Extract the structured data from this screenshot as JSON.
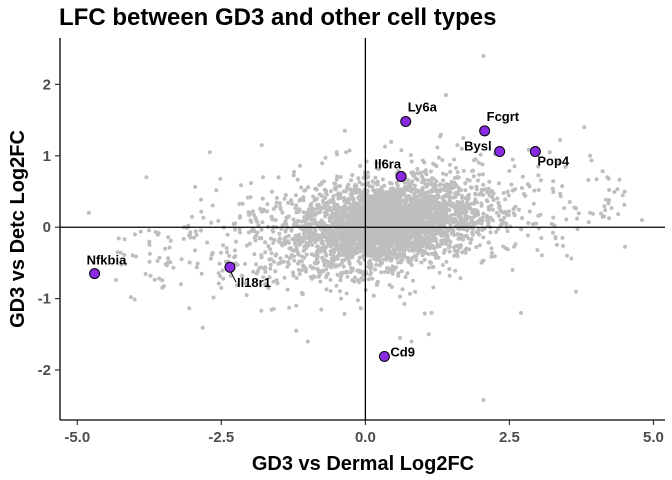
{
  "chart_data": {
    "type": "scatter",
    "title": "LFC between GD3 and other cell types",
    "xlabel": "GD3 vs Dermal Log2FC",
    "ylabel": "GD3 vs Detc Log2FC",
    "xlim": [
      -5.3,
      5.2
    ],
    "ylim": [
      -2.7,
      2.65
    ],
    "xticks": [
      -5,
      -2.5,
      0,
      2.5,
      5
    ],
    "xtick_labels": [
      "-5.0",
      "-2.5",
      "0.0",
      "2.5",
      "5.0"
    ],
    "yticks": [
      -2,
      -1,
      0,
      1,
      2
    ],
    "ytick_labels": [
      "-2",
      "-1",
      "0",
      "1",
      "2"
    ],
    "reference_lines": {
      "x": 0,
      "y": 0
    },
    "grid": false,
    "colors": {
      "background_points": "#bebebe",
      "highlight_fill": "#8a2be2",
      "highlight_stroke": "#000000",
      "axis": "#000000"
    },
    "background_cloud": {
      "description_points": "approx. several thousand genes",
      "outliers": [
        [
          2.05,
          2.4
        ],
        [
          1.4,
          1.85
        ],
        [
          -1.8,
          1.15
        ],
        [
          -2.7,
          1.05
        ],
        [
          -3.8,
          0.7
        ],
        [
          3.8,
          1.4
        ],
        [
          3.9,
          1.0
        ],
        [
          4.2,
          0.7
        ],
        [
          4.8,
          0.1
        ],
        [
          -4.8,
          0.2
        ],
        [
          -4.3,
          -0.35
        ],
        [
          -3.2,
          -0.8
        ],
        [
          -2.5,
          -0.85
        ],
        [
          -1.2,
          -1.45
        ],
        [
          -1.0,
          -1.6
        ],
        [
          -1.2,
          -1.1
        ],
        [
          0.6,
          -1.55
        ],
        [
          0.8,
          -1.6
        ],
        [
          1.15,
          -1.2
        ],
        [
          1.1,
          -1.5
        ],
        [
          2.05,
          -2.42
        ],
        [
          2.7,
          -1.2
        ],
        [
          3.5,
          -0.4
        ],
        [
          3.2,
          1.05
        ],
        [
          1.7,
          1.25
        ],
        [
          -0.5,
          1.05
        ],
        [
          3.0,
          0.85
        ],
        [
          4.5,
          0.5
        ],
        [
          -4.0,
          -0.1
        ],
        [
          3.9,
          0.2
        ]
      ]
    },
    "highlighted": [
      {
        "label": "Ly6a",
        "x": 0.7,
        "y": 1.48
      },
      {
        "label": "Fcgrt",
        "x": 2.07,
        "y": 1.35
      },
      {
        "label": "Bysl",
        "x": 2.33,
        "y": 1.06
      },
      {
        "label": "Pop4",
        "x": 2.95,
        "y": 1.06
      },
      {
        "label": "Il6ra",
        "x": 0.62,
        "y": 0.71
      },
      {
        "label": "Nfkbia",
        "x": -4.7,
        "y": -0.65
      },
      {
        "label": "Il18r1",
        "x": -2.35,
        "y": -0.56
      },
      {
        "label": "Cd9",
        "x": 0.33,
        "y": -1.81
      }
    ]
  }
}
